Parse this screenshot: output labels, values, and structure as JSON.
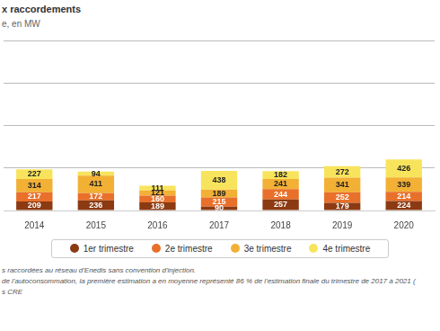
{
  "chart_data": {
    "type": "bar",
    "title": "x raccordements",
    "subtitle": "e, en MW",
    "categories": [
      "2014",
      "2015",
      "2016",
      "2017",
      "2018",
      "2019",
      "2020"
    ],
    "series": [
      {
        "name": "1er trimestre",
        "color": "#8b3a12",
        "values": [
          209,
          236,
          189,
          90,
          257,
          179,
          224
        ]
      },
      {
        "name": "2e trimestre",
        "color": "#e8702a",
        "values": [
          217,
          172,
          160,
          215,
          244,
          252,
          214
        ]
      },
      {
        "name": "3e trimestre",
        "color": "#f2b035",
        "values": [
          314,
          411,
          121,
          189,
          241,
          341,
          339
        ]
      },
      {
        "name": "4e trimestre",
        "color": "#f8e45c",
        "values": [
          227,
          94,
          111,
          438,
          182,
          272,
          426
        ]
      }
    ],
    "ylim": [
      0,
      4000
    ],
    "yticks": [
      0,
      1000,
      2000,
      3000,
      4000
    ],
    "stacked": true,
    "data_labels": true,
    "grid": true,
    "legend": "bottom",
    "tick_labels": "x",
    "annotations": [
      "s raccordées au réseau d'Enedis sans convention d'injection.",
      "de l'autoconsommation, la première estimation a en moyenne représenté 86 % de l'estimation finale du trimestre de 2017 à 2021 (",
      "s CRE"
    ]
  }
}
